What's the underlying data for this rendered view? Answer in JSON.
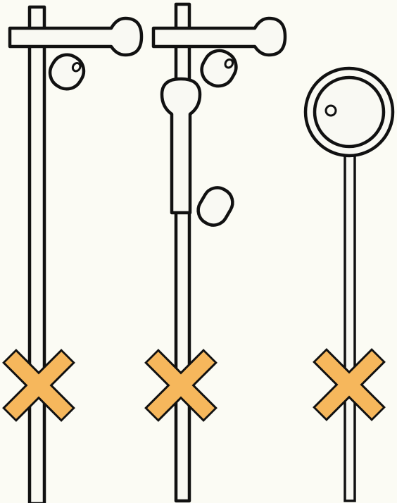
{
  "figure": {
    "signals": [
      {
        "id": "semaphore-single-arm",
        "parts": [
          "post",
          "arm",
          "lamp-lens",
          "crossing-mark"
        ]
      },
      {
        "id": "semaphore-two-arm",
        "parts": [
          "post",
          "arm",
          "lower-arm",
          "lamp-lens",
          "lower-lamp-lens",
          "crossing-mark"
        ]
      },
      {
        "id": "disc-signal",
        "parts": [
          "post",
          "disc",
          "lamp-lens",
          "crossing-mark"
        ]
      }
    ],
    "colors": {
      "background": "#fbfbf4",
      "line": "#111111",
      "crossing_mark": "#f6b75c"
    }
  }
}
